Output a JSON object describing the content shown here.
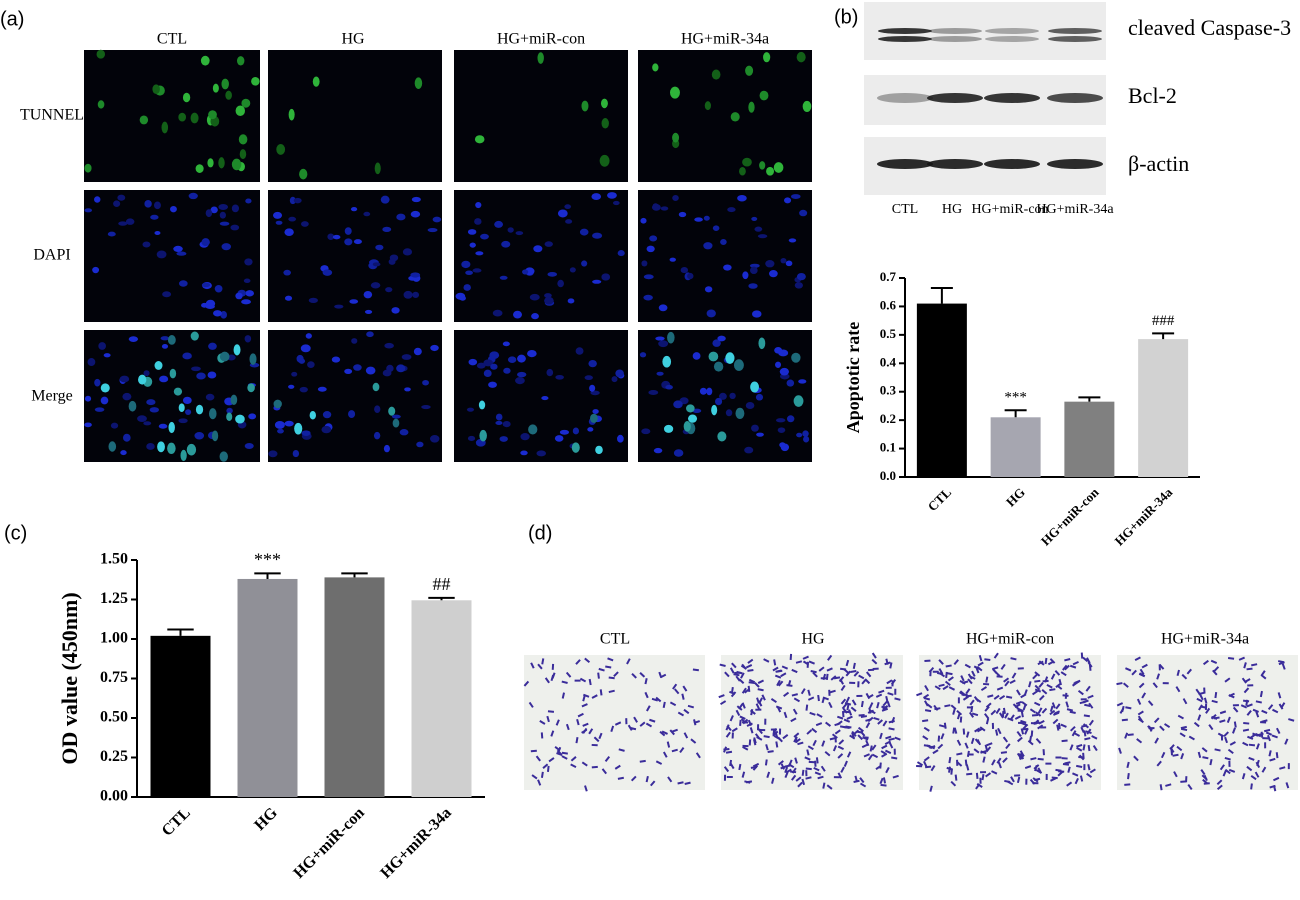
{
  "panel_labels": [
    "(a)",
    "(b)",
    "(c)",
    "(d)"
  ],
  "tunel": {
    "columns": [
      "CTL",
      "HG",
      "HG+miR-con",
      "HG+miR-34a"
    ],
    "rows": [
      "TUNNEL",
      "DAPI",
      "Merge"
    ]
  },
  "western": {
    "bands": [
      "cleaved Caspase-3",
      "Bcl-2",
      "β-actin"
    ],
    "lanes": [
      "CTL",
      "HG",
      "HG+miR-con",
      "HG+miR-34a"
    ]
  },
  "transwell": {
    "columns": [
      "CTL",
      "HG",
      "HG+miR-con",
      "HG+miR-34a"
    ]
  },
  "chart_data": [
    {
      "type": "bar",
      "y_label": "Apoptotic rate",
      "categories": [
        "CTL",
        "HG",
        "HG+miR-con",
        "HG+miR-34a"
      ],
      "values": [
        0.61,
        0.21,
        0.265,
        0.485
      ],
      "errors": [
        0.055,
        0.025,
        0.015,
        0.02
      ],
      "annotations": [
        null,
        "***",
        null,
        "###"
      ],
      "colors": [
        "#000000",
        "#a6a6b0",
        "#808080",
        "#d2d2d2"
      ],
      "ylim": [
        0,
        0.7
      ],
      "yticks": [
        {
          "value": 0,
          "label": "0.0"
        },
        0.1,
        0.2,
        0.3,
        0.4,
        0.5,
        0.6,
        0.7
      ],
      "grid": false
    },
    {
      "type": "bar",
      "y_label": "OD value (450nm)",
      "categories": [
        "CTL",
        "HG",
        "HG+miR-con",
        "HG+miR-34a"
      ],
      "values": [
        1.02,
        1.38,
        1.39,
        1.245
      ],
      "errors": [
        0.04,
        0.035,
        0.025,
        0.015
      ],
      "annotations": [
        null,
        "***",
        null,
        "##"
      ],
      "colors": [
        "#000000",
        "#909097",
        "#6e6e6e",
        "#cfcfcf"
      ],
      "ylim": [
        0,
        1.5
      ],
      "yticks": [
        {
          "value": 0,
          "label": "0.00"
        },
        {
          "value": 0.25,
          "label": "0.25"
        },
        {
          "value": 0.5,
          "label": "0.50"
        },
        {
          "value": 0.75,
          "label": "0.75"
        },
        {
          "value": 1,
          "label": "1.00"
        },
        {
          "value": 1.25,
          "label": "1.25"
        },
        {
          "value": 1.5,
          "label": "1.50"
        }
      ],
      "grid": false
    }
  ]
}
